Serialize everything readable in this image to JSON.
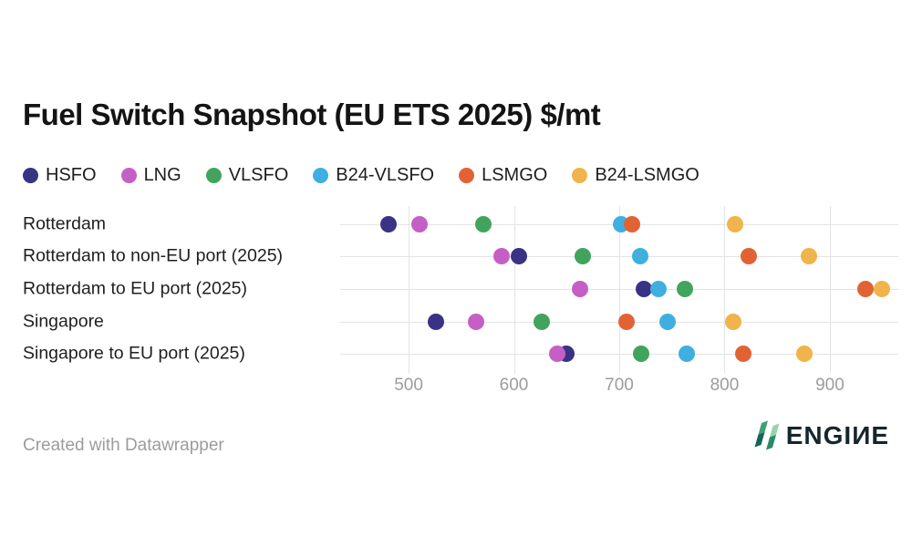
{
  "header": {
    "title": "Fuel Switch Snapshot (EU ETS 2025) $/mt"
  },
  "footer": {
    "credit": "Created with Datawrapper",
    "brand": "ENGIИE"
  },
  "chart_data": {
    "type": "scatter",
    "subtype": "dot-plot",
    "title": "Fuel Switch Snapshot (EU ETS 2025) $/mt",
    "xlabel": "",
    "ylabel": "",
    "units": "$/mt",
    "legend_position": "top",
    "grid": "vertical-gridlines-and-row-lines",
    "xlim": [
      435,
      965
    ],
    "xticks": [
      500,
      600,
      700,
      800,
      900
    ],
    "categories": [
      "Rotterdam",
      "Rotterdam to non-EU port (2025)",
      "Rotterdam to EU port (2025)",
      "Singapore",
      "Singapore to EU port (2025)"
    ],
    "series": [
      {
        "name": "HSFO",
        "color": "#3a3385",
        "values": [
          481,
          605,
          723,
          526,
          650
        ]
      },
      {
        "name": "LNG",
        "color": "#c55fc5",
        "values": [
          510,
          588,
          663,
          564,
          641
        ]
      },
      {
        "name": "VLSFO",
        "color": "#42a45c",
        "values": [
          571,
          665,
          762,
          626,
          721
        ]
      },
      {
        "name": "B24-VLSFO",
        "color": "#3fafe0",
        "values": [
          702,
          720,
          737,
          746,
          764
        ]
      },
      {
        "name": "LSMGO",
        "color": "#e16333",
        "values": [
          712,
          823,
          934,
          707,
          818
        ]
      },
      {
        "name": "B24-LSMGO",
        "color": "#efb44b",
        "values": [
          810,
          880,
          949,
          808,
          876
        ]
      }
    ],
    "theme": {
      "grid_color": "#e4e4e4",
      "axis_text_color": "#9c9c9c",
      "label_text_color": "#1f1f1f",
      "title_color": "#141414",
      "brand_green_dark": "#14655a",
      "brand_green_mid": "#3fa076",
      "brand_green_light": "#97d4ac",
      "brand_text_color": "#16262e"
    }
  }
}
